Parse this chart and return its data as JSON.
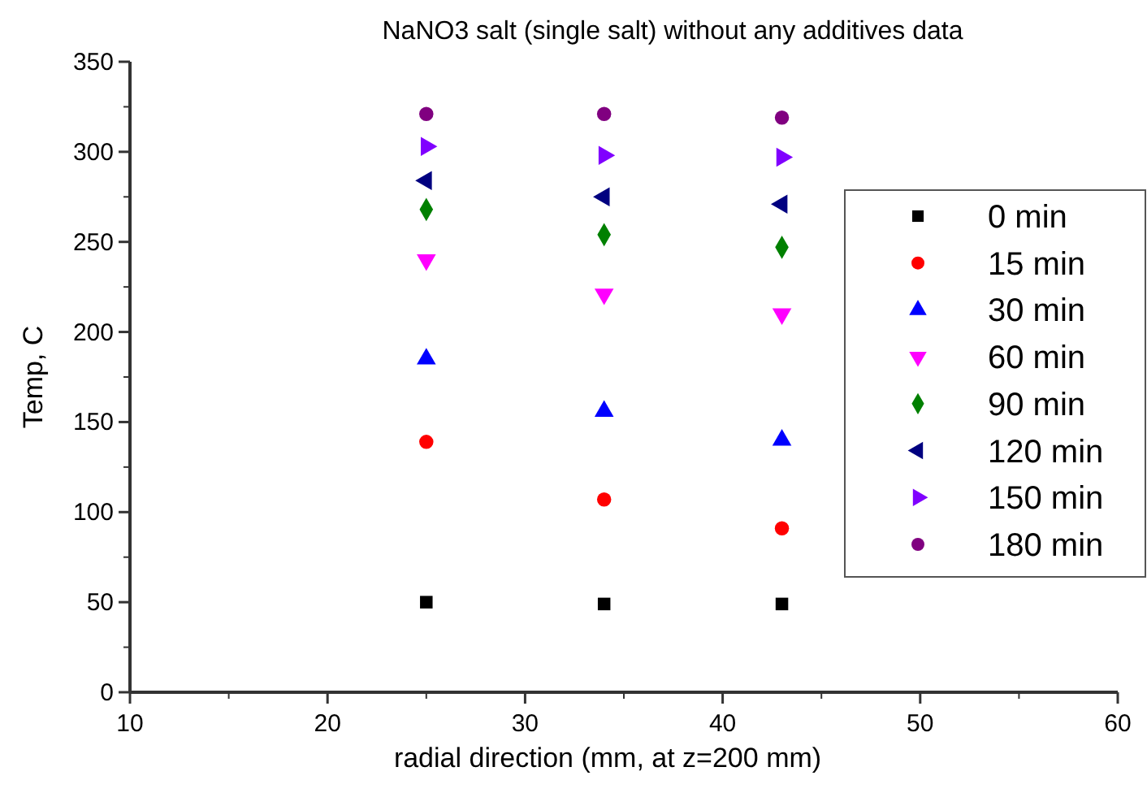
{
  "chart_data": {
    "type": "scatter",
    "title": "NaNO3 salt (single salt) without any additives data",
    "xlabel": "radial direction (mm, at z=200 mm)",
    "ylabel": "Temp, C",
    "xlim": [
      10,
      60
    ],
    "xticks": [
      10,
      20,
      30,
      40,
      50,
      60
    ],
    "ylim": [
      0,
      350
    ],
    "yticks": [
      0,
      50,
      100,
      150,
      200,
      250,
      300,
      350
    ],
    "grid": false,
    "legend": "right",
    "x": [
      25,
      34,
      43
    ],
    "series": [
      {
        "name": "0 min",
        "color": "#000000",
        "marker": "square",
        "values": [
          50,
          49,
          49
        ]
      },
      {
        "name": "15 min",
        "color": "#ff0000",
        "marker": "circle",
        "values": [
          139,
          107,
          91
        ]
      },
      {
        "name": "30 min",
        "color": "#0000ff",
        "marker": "triangle",
        "values": [
          185,
          156,
          140
        ]
      },
      {
        "name": "60 min",
        "color": "#ff00ff",
        "marker": "triangle-down",
        "values": [
          240,
          221,
          210
        ]
      },
      {
        "name": "90 min",
        "color": "#008000",
        "marker": "diamond",
        "values": [
          268,
          254,
          247
        ]
      },
      {
        "name": "120 min",
        "color": "#000080",
        "marker": "triangle-left",
        "values": [
          284,
          275,
          271
        ]
      },
      {
        "name": "150 min",
        "color": "#8000ff",
        "marker": "triangle-right",
        "values": [
          303,
          298,
          297
        ]
      },
      {
        "name": "180 min",
        "color": "#800080",
        "marker": "circle",
        "values": [
          321,
          321,
          319
        ]
      }
    ]
  }
}
